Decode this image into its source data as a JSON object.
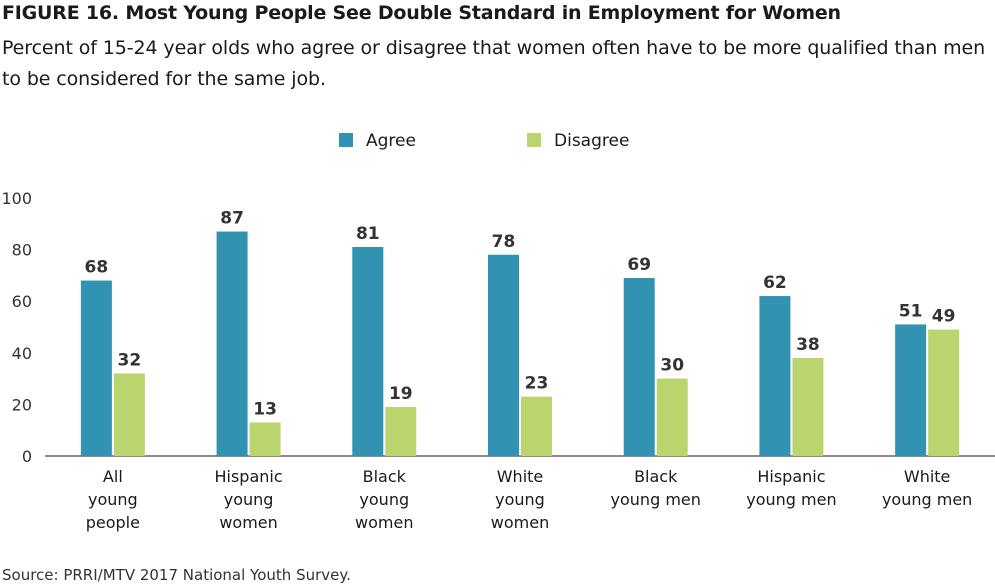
{
  "title": "FIGURE 16. Most Young People See Double Standard in Employment for Women",
  "subtitle": "Percent of 15-24 year olds who agree or disagree that women often have to be more qualified than men to be considered for the same job.",
  "source": "Source: PRRI/MTV 2017 National Youth Survey.",
  "colors": {
    "agree": "#3292b2",
    "disagree": "#bad56e",
    "axis": "#444444",
    "text": "#1a1a1a"
  },
  "chart_data": {
    "type": "bar",
    "categories": [
      [
        "All",
        "young",
        "people"
      ],
      [
        "Hispanic",
        "young",
        "women"
      ],
      [
        "Black",
        "young",
        "women"
      ],
      [
        "White",
        "young",
        "women"
      ],
      [
        "Black",
        "young men"
      ],
      [
        "Hispanic",
        "young men"
      ],
      [
        "White",
        "young men"
      ]
    ],
    "series": [
      {
        "name": "Agree",
        "values": [
          68,
          87,
          81,
          78,
          69,
          62,
          51
        ]
      },
      {
        "name": "Disagree",
        "values": [
          32,
          13,
          19,
          23,
          30,
          38,
          49
        ]
      }
    ],
    "ylim": [
      0,
      100
    ],
    "yticks": [
      0,
      20,
      40,
      60,
      80,
      100
    ],
    "xlabel": "",
    "ylabel": "",
    "legend_position": "top-center",
    "grid": false,
    "data_labels": true
  }
}
